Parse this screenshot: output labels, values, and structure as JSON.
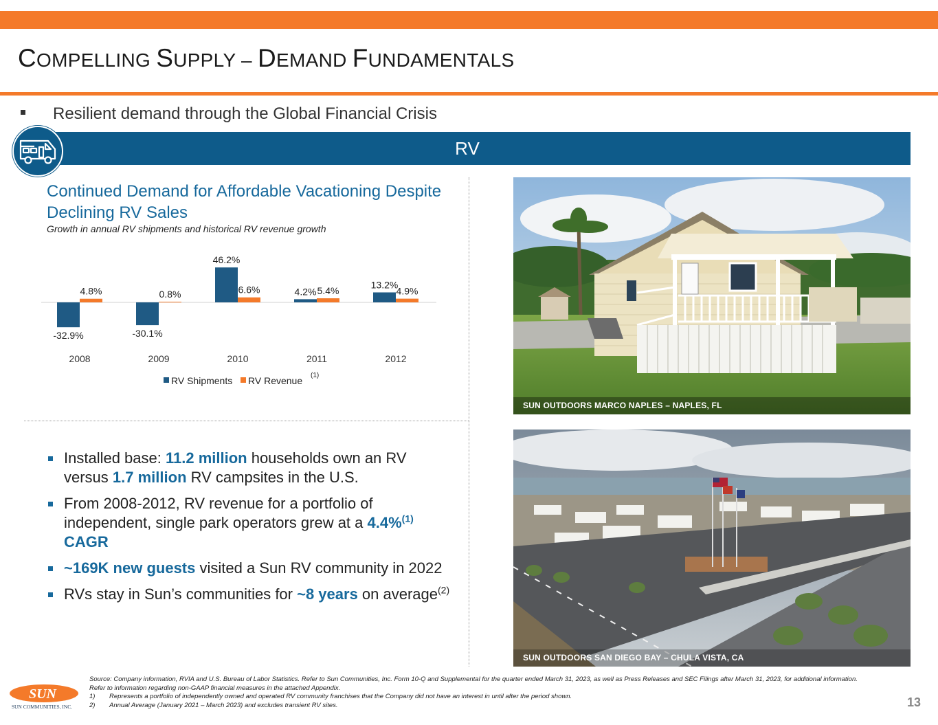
{
  "header": {
    "title_parts": [
      {
        "text": "C",
        "size": "big"
      },
      {
        "text": "OMPELLING ",
        "size": "small"
      },
      {
        "text": "S",
        "size": "big"
      },
      {
        "text": "UPPLY – ",
        "size": "small"
      },
      {
        "text": "D",
        "size": "big"
      },
      {
        "text": "EMAND ",
        "size": "small"
      },
      {
        "text": "F",
        "size": "big"
      },
      {
        "text": "UNDAMENTALS",
        "size": "small"
      }
    ],
    "top_bullet": "Resilient demand through the Global Financial Crisis",
    "band_label": "RV",
    "band_icon": "rv-camper-icon"
  },
  "chart_title": "Continued Demand for Affordable Vacationing Despite Declining RV Sales",
  "chart_subtitle": "Growth in annual RV shipments and historical RV revenue growth",
  "chart_data": {
    "type": "bar",
    "categories": [
      "2008",
      "2009",
      "2010",
      "2011",
      "2012"
    ],
    "series": [
      {
        "name": "RV Shipments",
        "values": [
          -32.9,
          -30.1,
          46.2,
          4.2,
          13.2
        ],
        "labels": [
          "-32.9%",
          "-30.1%",
          "46.2%",
          "4.2%",
          "13.2%"
        ],
        "color": "#1f5a84"
      },
      {
        "name": "RV Revenue",
        "name_superscript": "(1)",
        "values": [
          4.8,
          0.8,
          6.6,
          5.4,
          4.9
        ],
        "labels": [
          "4.8%",
          "0.8%",
          "6.6%",
          "5.4%",
          "4.9%"
        ],
        "color": "#f47a2a"
      }
    ],
    "legend": "bottom",
    "grid": false,
    "ylim": [
      -40,
      50
    ]
  },
  "bullets": [
    {
      "parts": [
        {
          "t": "Installed base: "
        },
        {
          "t": "11.2 million",
          "hl": true
        },
        {
          "t": " households own an RV versus "
        },
        {
          "t": "1.7 million",
          "hl": true
        },
        {
          "t": " RV campsites in the U.S."
        }
      ]
    },
    {
      "parts": [
        {
          "t": "From 2008-2012, RV revenue for a portfolio of independent, single park operators grew at a "
        },
        {
          "t": "4.4%",
          "hl": true
        },
        {
          "t": "(1)",
          "hl": true,
          "sup": true
        },
        {
          "t": " CAGR",
          "hl": true
        }
      ]
    },
    {
      "parts": [
        {
          "t": "~169K new guests",
          "hl": true
        },
        {
          "t": " visited a Sun RV community in 2022"
        }
      ]
    },
    {
      "parts": [
        {
          "t": "RVs stay in Sun’s communities for "
        },
        {
          "t": "~8 years",
          "hl": true
        },
        {
          "t": " on average"
        },
        {
          "t": "(2)",
          "sup": true
        }
      ]
    }
  ],
  "photos": [
    {
      "caption": "SUN OUTDOORS MARCO NAPLES – NAPLES, FL"
    },
    {
      "caption": "SUN OUTDOORS SAN DIEGO BAY – CHULA VISTA, CA"
    }
  ],
  "footnotes": {
    "source": "Source: Company information, RVIA and U.S. Bureau of Labor Statistics. Refer to Sun Communities, Inc. Form 10-Q and Supplemental for the quarter ended March 31, 2023, as well as Press Releases and SEC Filings after March 31, 2023, for additional information. Refer to information regarding non-GAAP financial measures in the attached Appendix.",
    "notes": [
      {
        "num": "1)",
        "text": "Represents a portfolio of independently owned and operated RV community franchises that the Company did not have an interest in until after the period shown."
      },
      {
        "num": "2)",
        "text": "Annual Average (January 2021 – March 2023) and excludes transient RV sites."
      }
    ]
  },
  "logo": {
    "wordmark": "SUN",
    "subtitle": "SUN COMMUNITIES, INC."
  },
  "page_number": "13",
  "colors": {
    "orange": "#f47a2a",
    "navy": "#0e5b8a",
    "title_blue": "#17699c"
  }
}
